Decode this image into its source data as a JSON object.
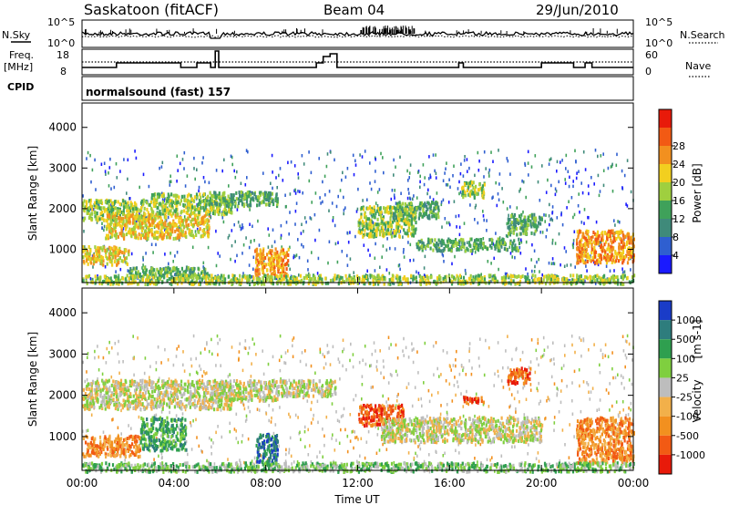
{
  "header": {
    "station": "Saskatoon (fitACF)",
    "beam": "Beam 04",
    "date": "29/Jun/2010"
  },
  "noise_panel": {
    "left_label": "N.Sky",
    "left_ticks": [
      "10^5",
      "10^0"
    ],
    "right_label": "N.Search",
    "right_ticks": [
      "10^5",
      "10^0"
    ]
  },
  "freq_panel": {
    "left_label_1": "Freq.",
    "left_label_2": "[MHz]",
    "left_ticks": [
      "18",
      "8"
    ],
    "right_label": "Nave",
    "right_ticks": [
      "60",
      "0"
    ]
  },
  "cpid_panel": {
    "label": "CPID",
    "program": "normalsound (fast) 157"
  },
  "colors": {
    "background": "#ffffff",
    "axis": "#000000",
    "velocity_ground_scatter": "#bdbdbd"
  },
  "chart_data": [
    {
      "type": "heatmap",
      "name": "power",
      "xlabel": "",
      "ylabel": "Slant Range [km]",
      "y_ticks": [
        "1000",
        "2000",
        "3000",
        "4000"
      ],
      "ylim": [
        180,
        4600
      ],
      "xlim": [
        "00:00",
        "24:00"
      ],
      "colorbar": {
        "label": "Power [dB]",
        "ticks": [
          "4",
          "8",
          "12",
          "16",
          "20",
          "24",
          "28"
        ],
        "colors": [
          "#1a1aff",
          "#2f5fd0",
          "#3f8a7a",
          "#3fa15a",
          "#9fcf3f",
          "#f2cf1f",
          "#f2901f",
          "#f25a14",
          "#e81a0a"
        ]
      },
      "features": [
        {
          "t0": 0.0,
          "t1": 3.2,
          "r0": 1750,
          "r1": 2250,
          "level": 4
        },
        {
          "t0": 1.0,
          "t1": 5.5,
          "r0": 1300,
          "r1": 1900,
          "level": 5
        },
        {
          "t0": 0.0,
          "t1": 2.0,
          "r0": 650,
          "r1": 1100,
          "level": 5
        },
        {
          "t0": 2.0,
          "t1": 5.5,
          "r0": 350,
          "r1": 600,
          "level": 3
        },
        {
          "t0": 3.0,
          "t1": 6.5,
          "r0": 1900,
          "r1": 2400,
          "level": 4
        },
        {
          "t0": 5.5,
          "t1": 8.5,
          "r0": 2100,
          "r1": 2450,
          "level": 3
        },
        {
          "t0": 7.5,
          "t1": 9.0,
          "r0": 350,
          "r1": 1050,
          "level": 6
        },
        {
          "t0": 12.0,
          "t1": 14.5,
          "r0": 1350,
          "r1": 2100,
          "level": 4
        },
        {
          "t0": 13.5,
          "t1": 15.5,
          "r0": 1800,
          "r1": 2200,
          "level": 3
        },
        {
          "t0": 14.5,
          "t1": 19.0,
          "r0": 1000,
          "r1": 1300,
          "level": 3
        },
        {
          "t0": 16.5,
          "t1": 17.5,
          "r0": 2300,
          "r1": 2700,
          "level": 4
        },
        {
          "t0": 18.5,
          "t1": 20.0,
          "r0": 1400,
          "r1": 1900,
          "level": 3
        },
        {
          "t0": 21.5,
          "t1": 24.0,
          "r0": 700,
          "r1": 1500,
          "level": 6
        },
        {
          "t0": 0.0,
          "t1": 24.0,
          "r0": 180,
          "r1": 400,
          "level": 4
        }
      ]
    },
    {
      "type": "heatmap",
      "name": "velocity",
      "xlabel": "Time UT",
      "ylabel": "Slant Range [km]",
      "y_ticks": [
        "1000",
        "2000",
        "3000",
        "4000"
      ],
      "x_ticks": [
        "00:00",
        "04:00",
        "08:00",
        "12:00",
        "16:00",
        "20:00",
        "00:00"
      ],
      "ylim": [
        180,
        4600
      ],
      "xlim": [
        "00:00",
        "24:00"
      ],
      "colorbar": {
        "label": "Velocity",
        "unit": "[m s-1]",
        "ticks": [
          "1000",
          "500",
          "100",
          "25",
          "-25",
          "-100",
          "-500",
          "-1000"
        ],
        "colors": [
          "#1a3cc8",
          "#2e7d7d",
          "#2f9f4f",
          "#7fcf3f",
          "#bdbdbd",
          "#f2b04a",
          "#f2901f",
          "#f25a14",
          "#e81a0a"
        ]
      },
      "features": [
        {
          "t0": 0.0,
          "t1": 6.5,
          "r0": 1700,
          "r1": 2400,
          "level": 4
        },
        {
          "t0": 5.5,
          "t1": 8.5,
          "r0": 1900,
          "r1": 2400,
          "level": 4
        },
        {
          "t0": 8.5,
          "t1": 11.0,
          "r0": 2000,
          "r1": 2400,
          "level": 4
        },
        {
          "t0": 0.0,
          "t1": 2.5,
          "r0": 550,
          "r1": 1050,
          "level": 6
        },
        {
          "t0": 2.5,
          "t1": 4.5,
          "r0": 700,
          "r1": 1500,
          "level": 2
        },
        {
          "t0": 7.5,
          "t1": 8.5,
          "r0": 400,
          "r1": 1100,
          "level": 1
        },
        {
          "t0": 12.0,
          "t1": 14.0,
          "r0": 1300,
          "r1": 1800,
          "level": 7
        },
        {
          "t0": 16.5,
          "t1": 17.5,
          "r0": 1850,
          "r1": 2000,
          "level": 7
        },
        {
          "t0": 18.5,
          "t1": 19.5,
          "r0": 2300,
          "r1": 2700,
          "level": 7
        },
        {
          "t0": 21.5,
          "t1": 24.0,
          "r0": 400,
          "r1": 1500,
          "level": 6
        },
        {
          "t0": 13.0,
          "t1": 20.0,
          "r0": 900,
          "r1": 1500,
          "level": 4
        },
        {
          "t0": 0.0,
          "t1": 24.0,
          "r0": 180,
          "r1": 400,
          "level": 3
        }
      ]
    }
  ]
}
